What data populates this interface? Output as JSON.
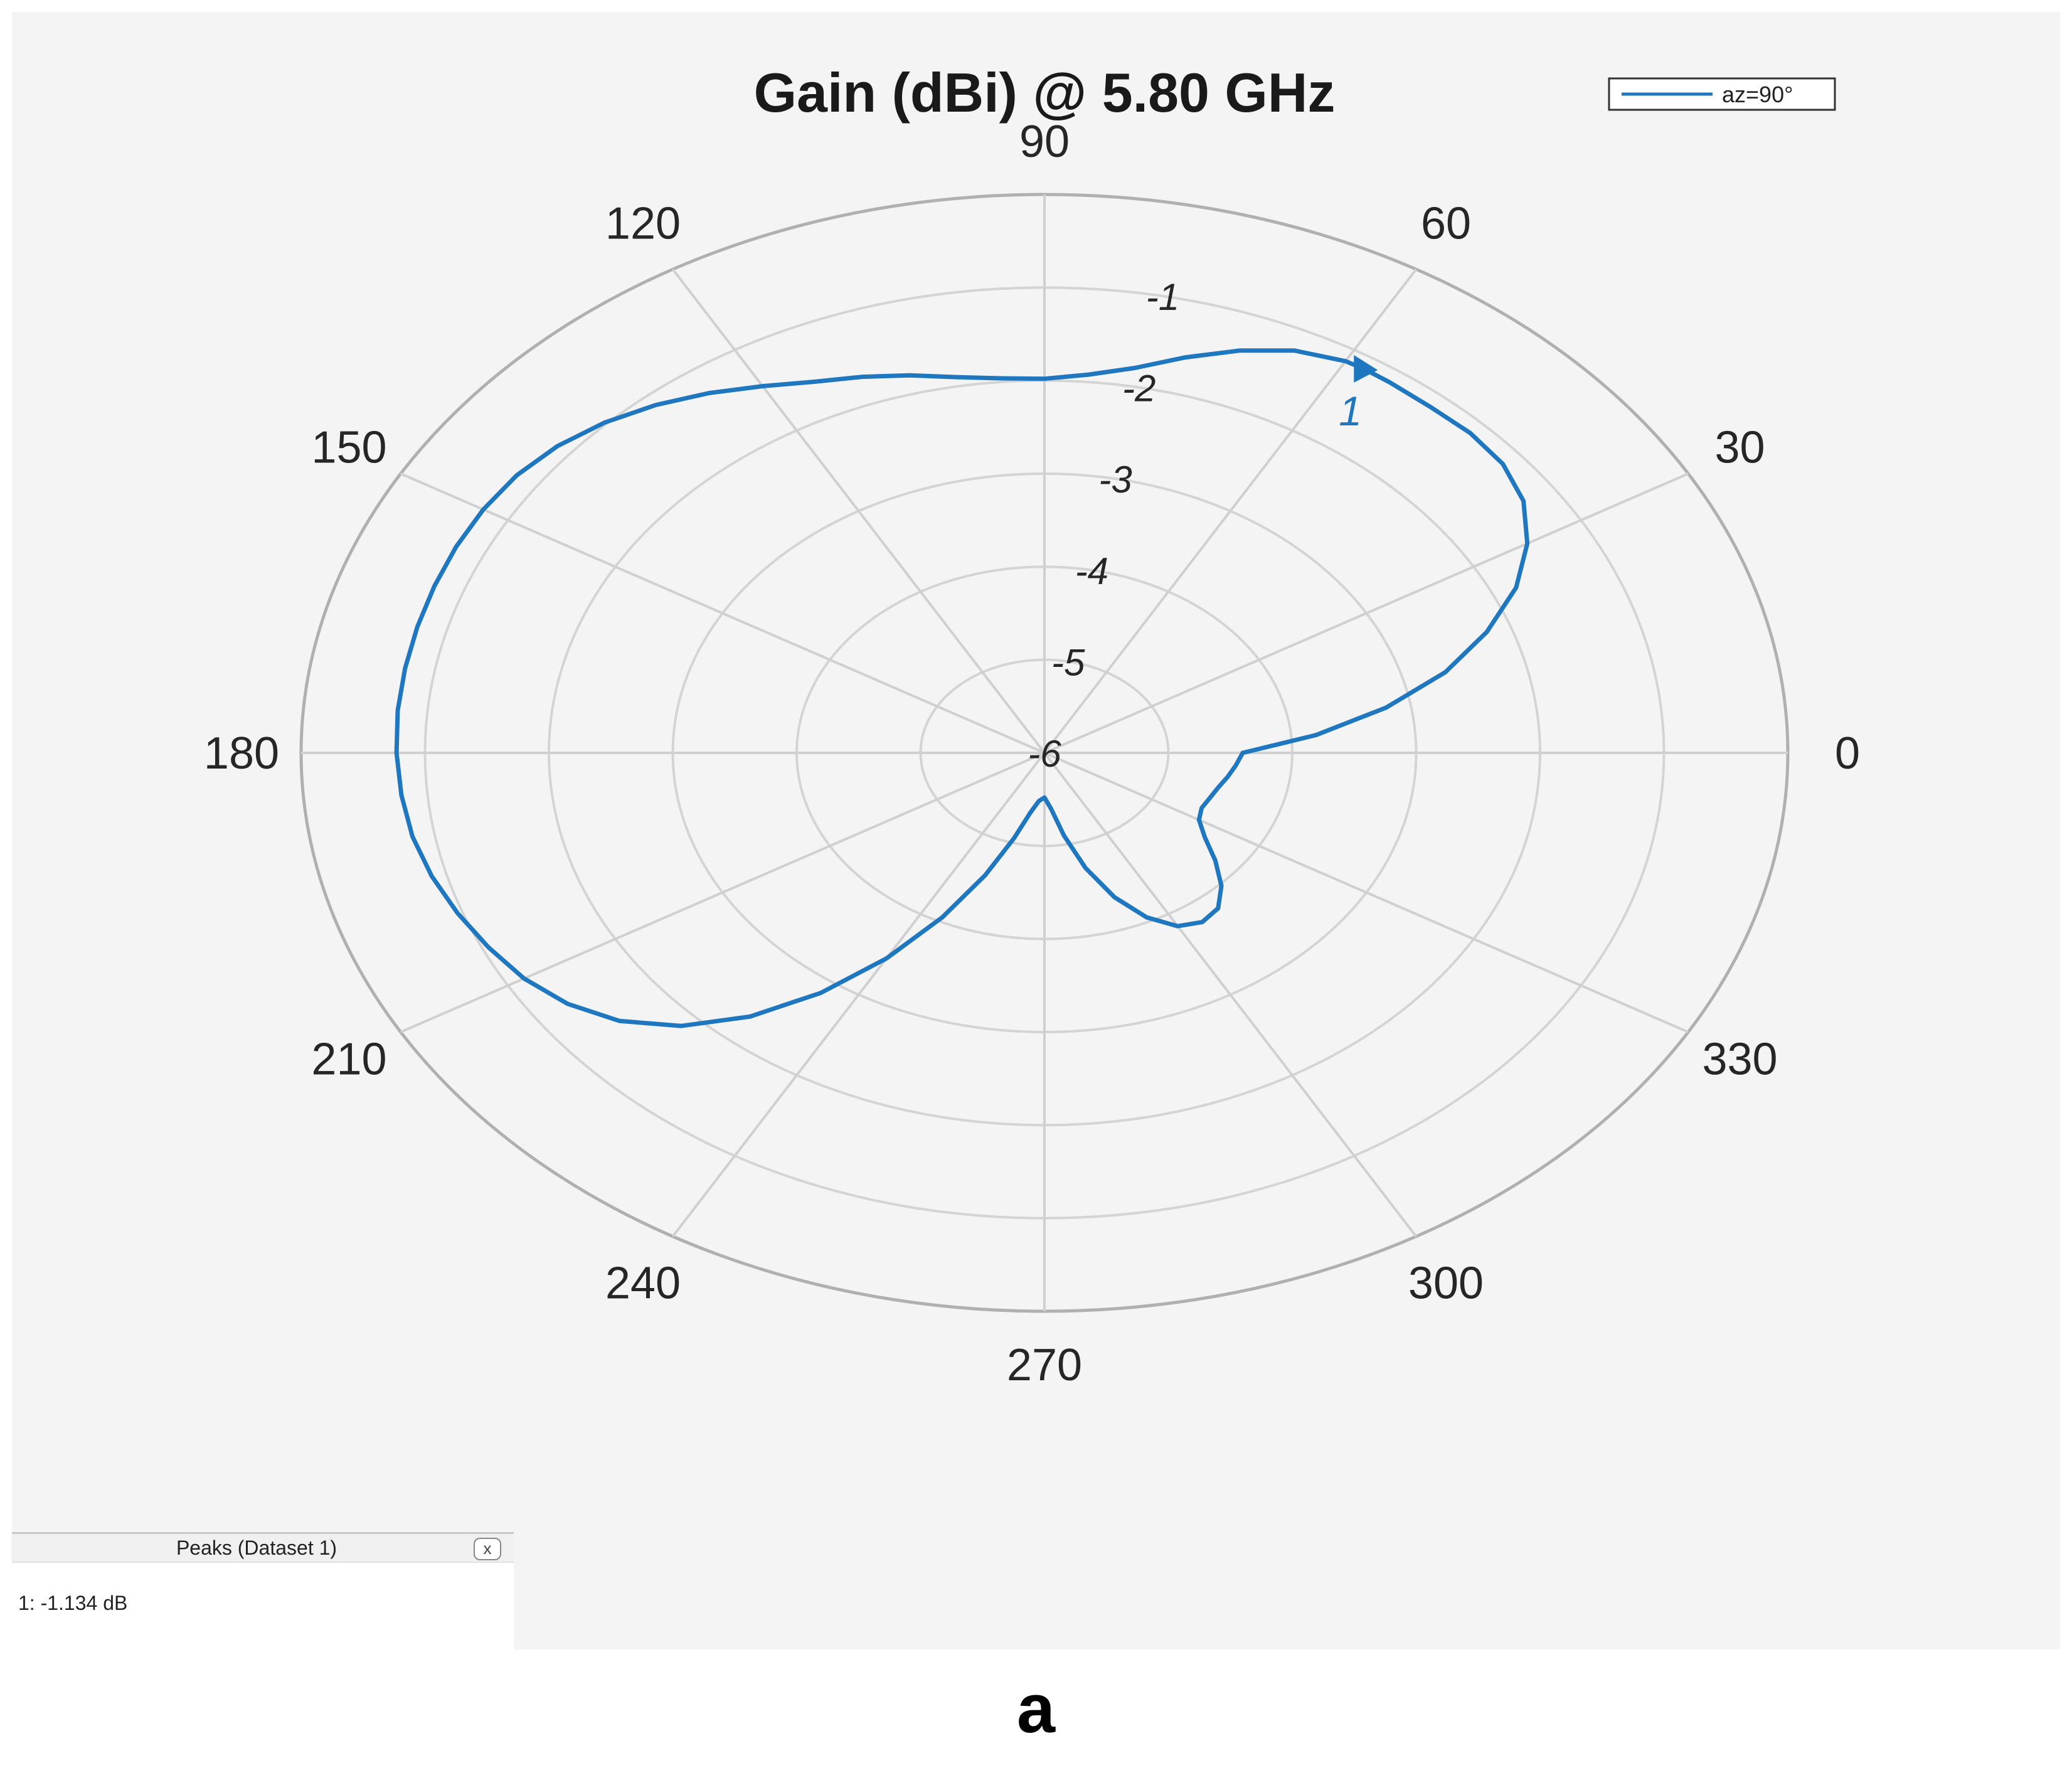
{
  "chart_data": {
    "type": "polar",
    "title": "Gain (dBi) @ 5.80 GHz",
    "legend": {
      "label": "az=90°",
      "placement": "top-right"
    },
    "angle_ticks": [
      "0",
      "30",
      "60",
      "90",
      "120",
      "150",
      "180",
      "210",
      "240",
      "270",
      "300",
      "330"
    ],
    "angle_tick_values": [
      0,
      30,
      60,
      90,
      120,
      150,
      180,
      210,
      240,
      270,
      300,
      330
    ],
    "radial_ticks": [
      "-6",
      "-5",
      "-4",
      "-3",
      "-2",
      "-1"
    ],
    "radial_tick_values": [
      -6,
      -5,
      -4,
      -3,
      -2,
      -1
    ],
    "rlim": [
      -6,
      -1
    ],
    "grid": true,
    "series": [
      {
        "name": "az=90°",
        "color": "#1f77c0",
        "angles": [
          0,
          5,
          10,
          15,
          20,
          25,
          30,
          35,
          40,
          45,
          50,
          55,
          58,
          60,
          65,
          70,
          75,
          80,
          85,
          90,
          95,
          100,
          105,
          110,
          115,
          120,
          125,
          130,
          135,
          140,
          145,
          150,
          155,
          160,
          165,
          170,
          175,
          180,
          185,
          190,
          195,
          200,
          205,
          210,
          215,
          220,
          225,
          230,
          235,
          240,
          245,
          250,
          255,
          260,
          265,
          270,
          275,
          280,
          285,
          290,
          295,
          300,
          305,
          310,
          315,
          320,
          325,
          330,
          335,
          340,
          345,
          350,
          355,
          360
        ],
        "values": [
          -4.4,
          -3.8,
          -3.2,
          -2.65,
          -2.2,
          -1.8,
          -1.5,
          -1.28,
          -1.17,
          -1.14,
          -1.15,
          -1.14,
          -1.134,
          -1.14,
          -1.23,
          -1.4,
          -1.6,
          -1.8,
          -1.92,
          -1.98,
          -1.96,
          -1.9,
          -1.8,
          -1.7,
          -1.6,
          -1.45,
          -1.28,
          -1.12,
          -0.98,
          -0.87,
          -0.8,
          -0.77,
          -0.76,
          -0.76,
          -0.76,
          -0.76,
          -0.76,
          -0.77,
          -0.79,
          -0.82,
          -0.88,
          -0.96,
          -1.05,
          -1.15,
          -1.3,
          -1.52,
          -1.85,
          -2.3,
          -2.85,
          -3.45,
          -4.05,
          -4.6,
          -5.05,
          -5.35,
          -5.48,
          -5.52,
          -5.4,
          -5.1,
          -4.72,
          -4.35,
          -4.05,
          -3.85,
          -3.78,
          -3.82,
          -3.98,
          -4.2,
          -4.42,
          -4.56,
          -4.6,
          -4.58,
          -4.55,
          -4.5,
          -4.45,
          -4.4
        ]
      }
    ],
    "peak_marker": {
      "label": "1",
      "angle": 58,
      "value": -1.134
    }
  },
  "peaks_panel": {
    "title": "Peaks (Dataset 1)",
    "close_label": "x",
    "entries": [
      {
        "text": "1: -1.134 dB"
      }
    ]
  },
  "caption": "a"
}
